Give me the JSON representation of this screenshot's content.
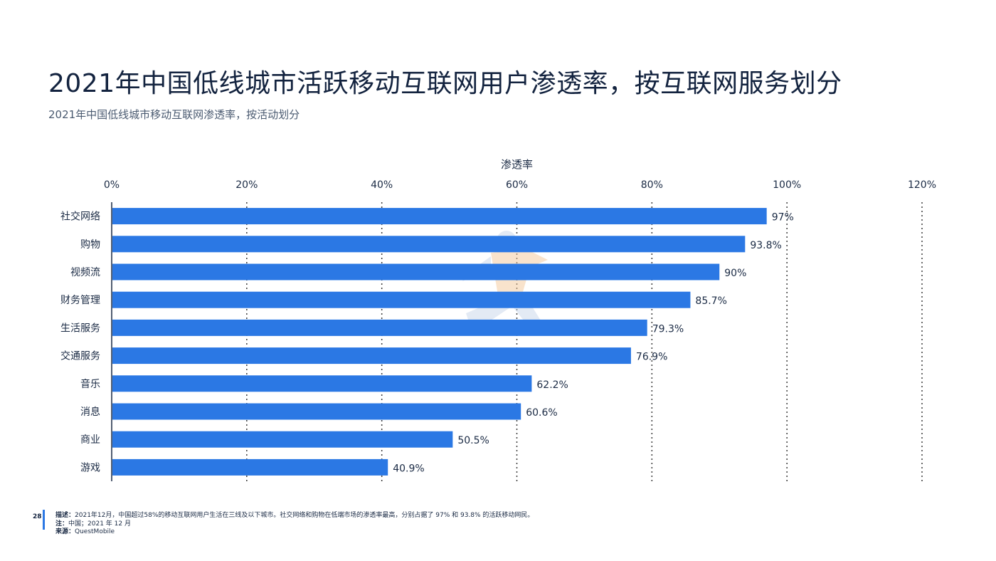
{
  "page": {
    "title": "2021年中国低线城市活跃移动互联网用户渗透率，按互联网服务划分",
    "subtitle": "2021年中国低线城市移动互联网渗透率，按活动划分",
    "page_number": "28"
  },
  "footer": {
    "description_label": "描述：",
    "description_text": "2021年12月，中国超过58%的移动互联网用户生活在三线及以下城市。社交网络和购物在低端市场的渗透率最高，分别占据了 97% 和 93.8% 的活跃移动网民。",
    "note_label": "注：",
    "note_text": "中国；2021 年 12 月",
    "source_label": "来源：",
    "source_text": "QuestMobile"
  },
  "chart_data": {
    "type": "bar",
    "orientation": "horizontal",
    "xlabel": "渗透率",
    "xlim": [
      0,
      120
    ],
    "x_ticks": [
      "0%",
      "20%",
      "40%",
      "60%",
      "80%",
      "100%",
      "120%"
    ],
    "x_tick_values": [
      0,
      20,
      40,
      60,
      80,
      100,
      120
    ],
    "categories": [
      "社交网络",
      "购物",
      "视频流",
      "财务管理",
      "生活服务",
      "交通服务",
      "音乐",
      "消息",
      "商业",
      "游戏"
    ],
    "values": [
      97,
      93.8,
      90,
      85.7,
      79.3,
      76.9,
      62.2,
      60.6,
      50.5,
      40.9
    ],
    "data_labels": [
      "97%",
      "93.8%",
      "90%",
      "85.7%",
      "79.3%",
      "76.9%",
      "62.2%",
      "60.6%",
      "50.5%",
      "40.9%"
    ],
    "bar_color": "#2b78e4",
    "grid": "dotted-vertical"
  }
}
